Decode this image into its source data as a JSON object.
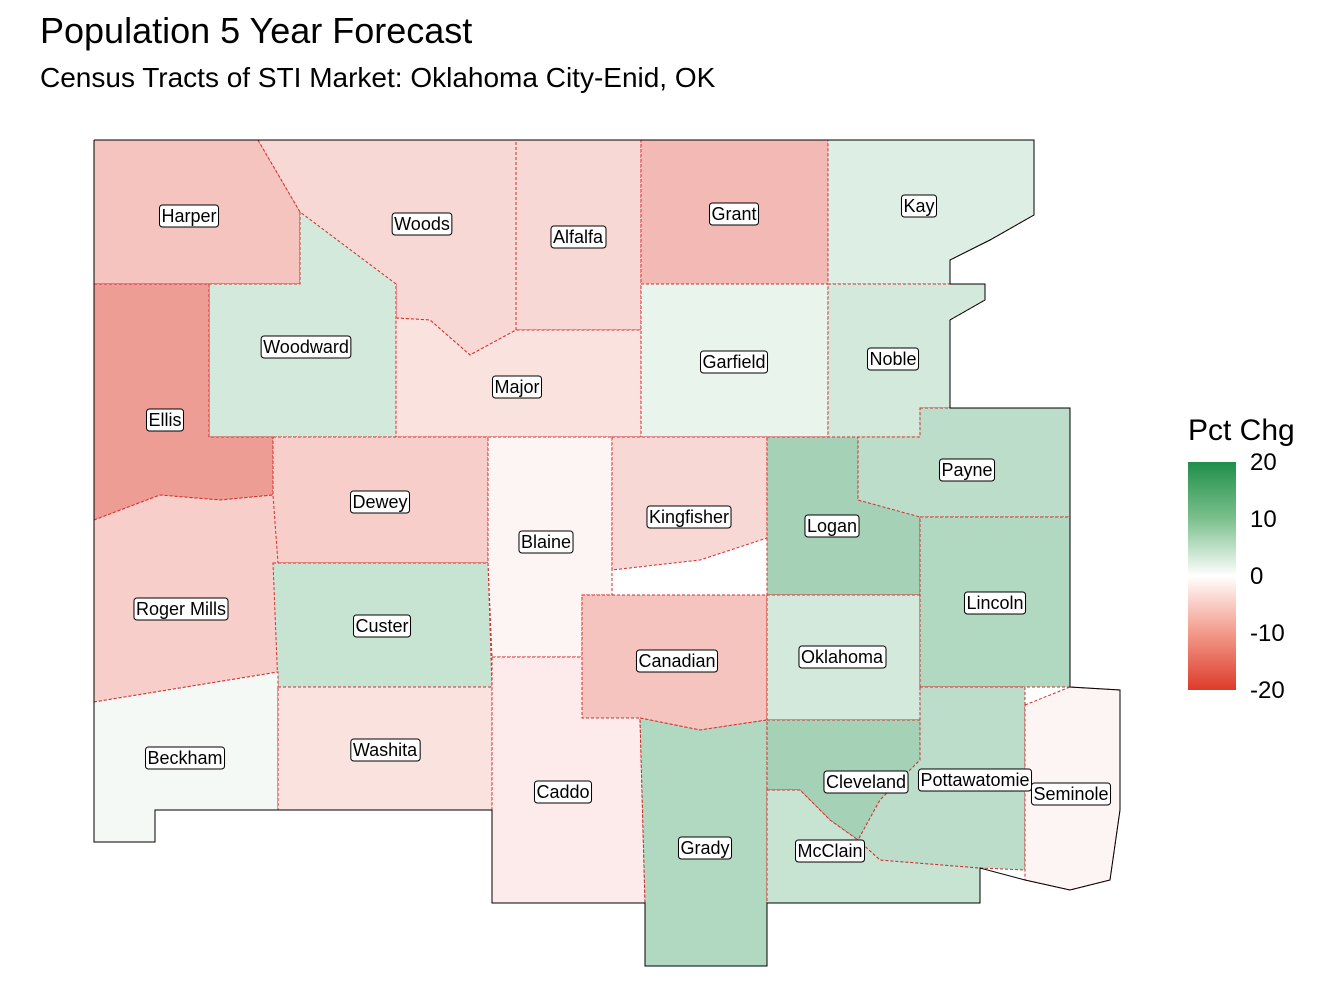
{
  "title": "Population 5 Year Forecast",
  "subtitle": "Census Tracts of STI Market: Oklahoma City-Enid, OK",
  "legend": {
    "title": "Pct Chg",
    "ticks": [
      "20",
      "10",
      "0",
      "-10",
      "-20"
    ],
    "scale_low_color": "#dd3b2b",
    "scale_mid_color": "#ffffff",
    "scale_high_color": "#1f8f4a"
  },
  "counties": [
    {
      "name": "Harper",
      "value": -6
    },
    {
      "name": "Woods",
      "value": -4
    },
    {
      "name": "Alfalfa",
      "value": -4
    },
    {
      "name": "Grant",
      "value": -7
    },
    {
      "name": "Kay",
      "value": 3
    },
    {
      "name": "Woodward",
      "value": 4
    },
    {
      "name": "Major",
      "value": -3
    },
    {
      "name": "Garfield",
      "value": 2
    },
    {
      "name": "Noble",
      "value": 4
    },
    {
      "name": "Ellis",
      "value": -10
    },
    {
      "name": "Dewey",
      "value": -5
    },
    {
      "name": "Blaine",
      "value": -1
    },
    {
      "name": "Kingfisher",
      "value": -4
    },
    {
      "name": "Logan",
      "value": 8
    },
    {
      "name": "Payne",
      "value": 6
    },
    {
      "name": "Roger Mills",
      "value": -5
    },
    {
      "name": "Custer",
      "value": 5
    },
    {
      "name": "Canadian",
      "value": -6
    },
    {
      "name": "Oklahoma",
      "value": 4
    },
    {
      "name": "Lincoln",
      "value": 7
    },
    {
      "name": "Beckham",
      "value": 1
    },
    {
      "name": "Washita",
      "value": -3
    },
    {
      "name": "Caddo",
      "value": -2
    },
    {
      "name": "Grady",
      "value": 7
    },
    {
      "name": "Cleveland",
      "value": 8
    },
    {
      "name": "McClain",
      "value": 5
    },
    {
      "name": "Pottawatomie",
      "value": 6
    },
    {
      "name": "Seminole",
      "value": -1
    }
  ]
}
